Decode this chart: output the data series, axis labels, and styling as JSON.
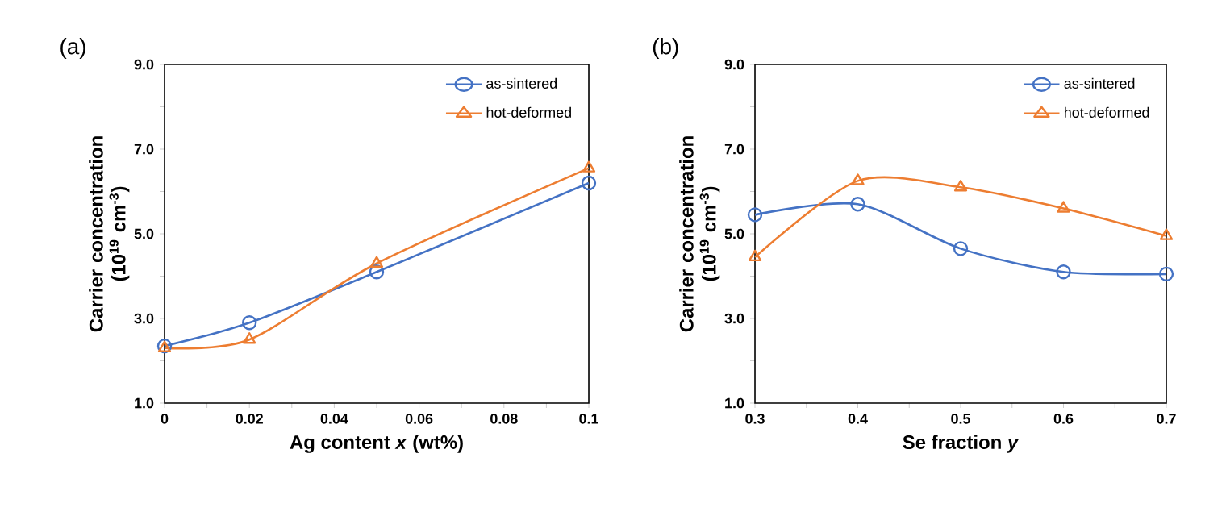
{
  "chart_data": [
    {
      "type": "line",
      "annotations": [
        "(a)"
      ],
      "xlabel": "Ag content *x* (wt%)",
      "ylabel": "Carrier concentration (10$^{19}$ cm$^{-3}$)",
      "xlim": [
        0,
        0.1
      ],
      "ylim": [
        1,
        9
      ],
      "xticks": [
        0,
        {
          "value": 0.01,
          "label": null
        },
        0.02,
        {
          "value": 0.03,
          "label": null
        },
        0.04,
        {
          "value": 0.05,
          "label": null
        },
        0.06,
        {
          "value": 0.07,
          "label": null
        },
        0.08,
        {
          "value": 0.09,
          "label": null
        },
        0.1
      ],
      "yticks": [
        {
          "value": 1,
          "label": "1.0"
        },
        {
          "value": 2,
          "label": null
        },
        {
          "value": 3,
          "label": "3.0"
        },
        {
          "value": 4,
          "label": null
        },
        {
          "value": 5,
          "label": "5.0"
        },
        {
          "value": 6,
          "label": null
        },
        {
          "value": 7,
          "label": "7.0"
        },
        {
          "value": 8,
          "label": null
        },
        {
          "value": 9,
          "label": "9.0"
        }
      ],
      "x": [
        0,
        0.02,
        0.05,
        0.1
      ],
      "legend": "top right",
      "grid": false,
      "line_style": "solid",
      "series": [
        {
          "name": "as-sintered",
          "color": "#4472c4",
          "marker": "circle",
          "values": [
            2.35,
            2.9,
            4.1,
            6.2
          ]
        },
        {
          "name": "hot-deformed",
          "color": "#ed7d31",
          "marker": "triangle",
          "values": [
            2.3,
            2.5,
            4.3,
            6.55
          ]
        }
      ]
    },
    {
      "type": "line",
      "annotations": [
        "(b)"
      ],
      "xlabel": "Se fraction *y*",
      "ylabel": "Carrier concentration (10$^{19}$ cm$^{-3}$)",
      "xlim": [
        0.3,
        0.7
      ],
      "ylim": [
        1,
        9
      ],
      "xticks": [
        0.3,
        {
          "value": 0.35,
          "label": null
        },
        0.4,
        {
          "value": 0.45,
          "label": null
        },
        0.5,
        {
          "value": 0.55,
          "label": null
        },
        0.6,
        {
          "value": 0.65,
          "label": null
        },
        0.7
      ],
      "yticks": [
        {
          "value": 1,
          "label": "1.0"
        },
        {
          "value": 2,
          "label": null
        },
        {
          "value": 3,
          "label": "3.0"
        },
        {
          "value": 4,
          "label": null
        },
        {
          "value": 5,
          "label": "5.0"
        },
        {
          "value": 6,
          "label": null
        },
        {
          "value": 7,
          "label": "7.0"
        },
        {
          "value": 8,
          "label": null
        },
        {
          "value": 9,
          "label": "9.0"
        }
      ],
      "x": [
        0.3,
        0.4,
        0.5,
        0.6,
        0.7
      ],
      "legend": "top right",
      "grid": false,
      "line_style": "solid",
      "series": [
        {
          "name": "as-sintered",
          "color": "#4472c4",
          "marker": "circle",
          "values": [
            5.45,
            5.7,
            4.65,
            4.1,
            4.05
          ]
        },
        {
          "name": "hot-deformed",
          "color": "#ed7d31",
          "marker": "triangle",
          "values": [
            4.45,
            6.25,
            6.1,
            5.6,
            4.95
          ]
        }
      ]
    }
  ]
}
